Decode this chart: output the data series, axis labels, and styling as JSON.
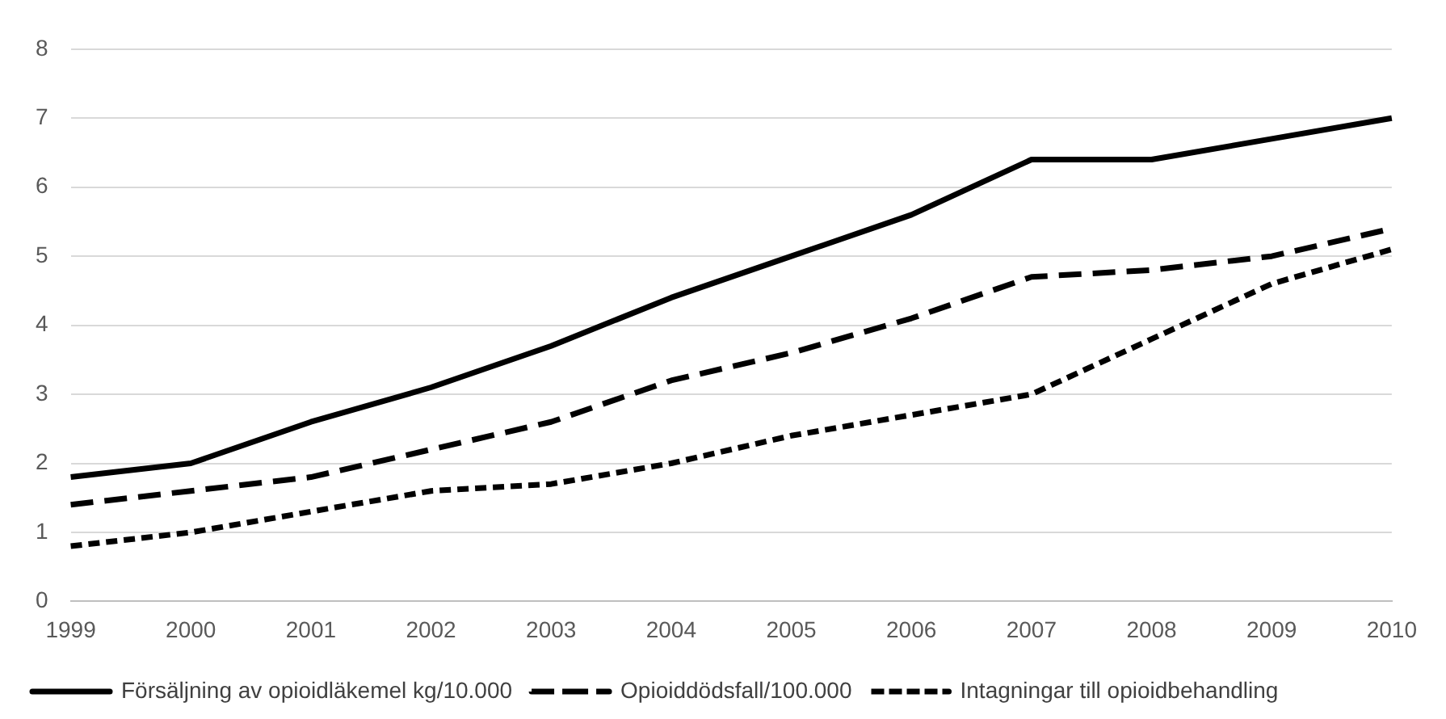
{
  "chart_data": {
    "type": "line",
    "categories": [
      "1999",
      "2000",
      "2001",
      "2002",
      "2003",
      "2004",
      "2005",
      "2006",
      "2007",
      "2008",
      "2009",
      "2010"
    ],
    "series": [
      {
        "name": "Försäljning av opioidläkemel kg/10.000",
        "color": "#000000",
        "line_style": "solid",
        "values": [
          1.8,
          2.0,
          2.6,
          3.1,
          3.7,
          4.4,
          5.0,
          5.6,
          6.4,
          6.4,
          6.7,
          7.0
        ]
      },
      {
        "name": "Opioiddödsfall/100.000",
        "color": "#000000",
        "line_style": "dashed",
        "values": [
          1.4,
          1.6,
          1.8,
          2.2,
          2.6,
          3.2,
          3.6,
          4.1,
          4.7,
          4.8,
          5.0,
          5.4
        ]
      },
      {
        "name": "Intagningar till opioidbehandling",
        "color": "#000000",
        "line_style": "dotted",
        "values": [
          0.8,
          1.0,
          1.3,
          1.6,
          1.7,
          2.0,
          2.4,
          2.7,
          3.0,
          3.8,
          4.6,
          5.1
        ]
      }
    ],
    "ylim": [
      0,
      8
    ],
    "yticks": [
      0,
      1,
      2,
      3,
      4,
      5,
      6,
      7,
      8
    ],
    "grid": "y",
    "legend": "bottom",
    "marker": "none"
  }
}
